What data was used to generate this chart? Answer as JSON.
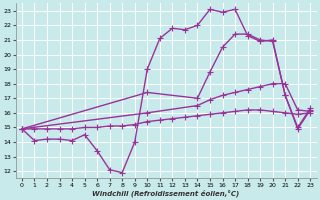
{
  "xlabel": "Windchill (Refroidissement éolien,°C)",
  "xlim": [
    -0.5,
    23.5
  ],
  "ylim": [
    11.5,
    23.5
  ],
  "yticks": [
    12,
    13,
    14,
    15,
    16,
    17,
    18,
    19,
    20,
    21,
    22,
    23
  ],
  "xticks": [
    0,
    1,
    2,
    3,
    4,
    5,
    6,
    7,
    8,
    9,
    10,
    11,
    12,
    13,
    14,
    15,
    16,
    17,
    18,
    19,
    20,
    21,
    22,
    23
  ],
  "bg_color": "#c8eaea",
  "grid_color": "#b0d8d8",
  "line_color": "#993399",
  "line_width": 1.0,
  "marker": "+",
  "marker_size": 4,
  "marker_lw": 0.8,
  "lines": [
    {
      "x": [
        0,
        1,
        2,
        3,
        4,
        5,
        6,
        7,
        8,
        9,
        10,
        11,
        12,
        13,
        14,
        15,
        16,
        17,
        18,
        19,
        20,
        21,
        22,
        23
      ],
      "y": [
        14.9,
        14.1,
        14.2,
        14.2,
        14.1,
        14.5,
        13.4,
        12.1,
        11.9,
        14.0,
        19.0,
        21.1,
        21.8,
        21.7,
        22.0,
        23.1,
        22.9,
        23.1,
        21.3,
        20.9,
        21.0,
        17.2,
        14.9,
        16.2
      ]
    },
    {
      "x": [
        0,
        1,
        2,
        3,
        4,
        5,
        6,
        7,
        8,
        9,
        10,
        11,
        12,
        13,
        14,
        15,
        16,
        17,
        18,
        19,
        20,
        21,
        22,
        23
      ],
      "y": [
        14.9,
        14.9,
        14.9,
        14.9,
        14.9,
        15.0,
        15.0,
        15.1,
        15.1,
        15.2,
        15.4,
        15.5,
        15.6,
        15.7,
        15.8,
        15.9,
        16.0,
        16.1,
        16.2,
        16.2,
        16.1,
        16.0,
        15.9,
        16.0
      ]
    },
    {
      "x": [
        0,
        10,
        14,
        15,
        16,
        17,
        18,
        19,
        20,
        21,
        22,
        23
      ],
      "y": [
        14.9,
        17.4,
        17.0,
        18.8,
        20.5,
        21.4,
        21.4,
        21.0,
        20.9,
        17.2,
        15.0,
        16.3
      ]
    },
    {
      "x": [
        0,
        10,
        14,
        15,
        16,
        17,
        18,
        19,
        20,
        21,
        22,
        23
      ],
      "y": [
        14.9,
        16.0,
        16.5,
        16.9,
        17.2,
        17.4,
        17.6,
        17.8,
        18.0,
        18.0,
        16.2,
        16.1
      ]
    }
  ]
}
